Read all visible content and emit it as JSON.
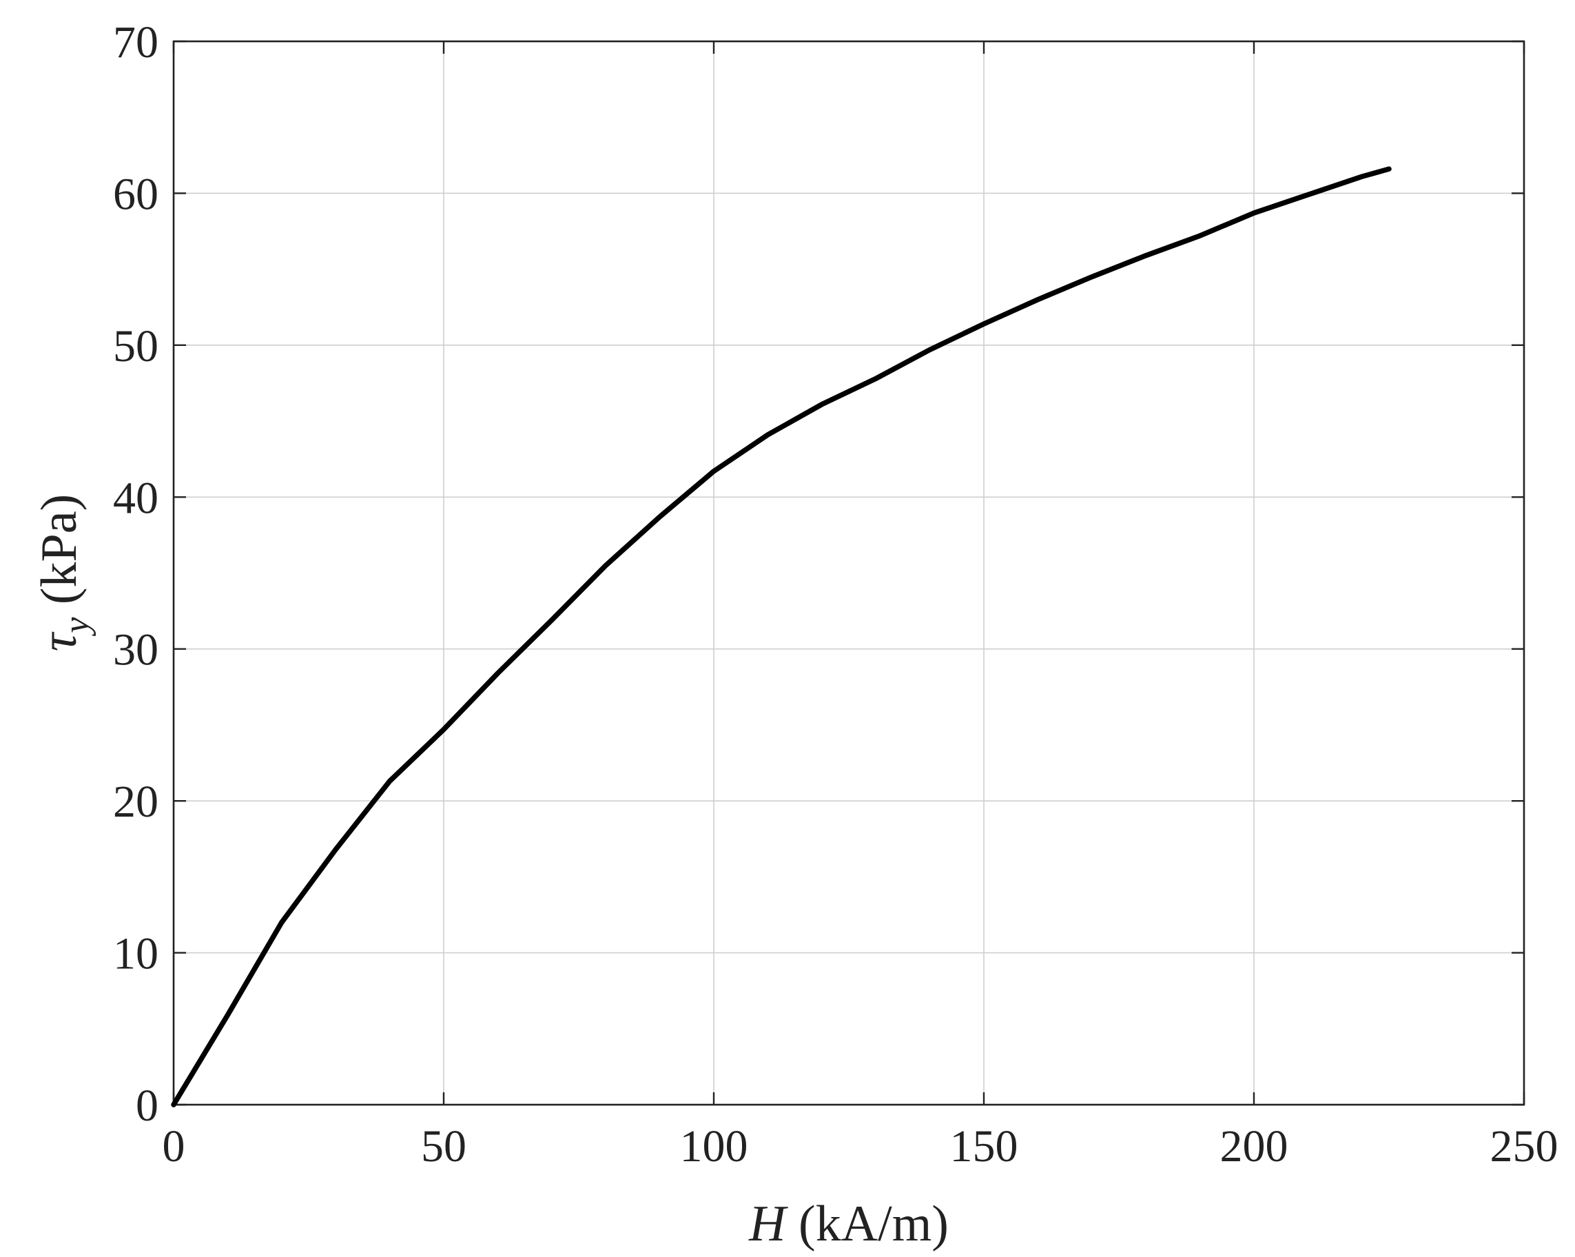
{
  "chart_data": {
    "type": "line",
    "title": "",
    "xlabel_italic": "H",
    "xlabel_rest": " (kA/m)",
    "ylabel_symbol": "τ",
    "ylabel_subscript": "y",
    "ylabel_rest": " (kPa)",
    "xlim": [
      0,
      250
    ],
    "ylim": [
      0,
      70
    ],
    "xticks": [
      0,
      50,
      100,
      150,
      200,
      250
    ],
    "yticks": [
      0,
      10,
      20,
      30,
      40,
      50,
      60,
      70
    ],
    "grid": true,
    "series": [
      {
        "color": "#000000",
        "x": [
          0,
          10,
          20,
          30,
          40,
          50,
          60,
          70,
          80,
          90,
          100,
          110,
          120,
          130,
          140,
          150,
          160,
          170,
          180,
          190,
          200,
          210,
          220,
          225
        ],
        "y": [
          0,
          5.9,
          12.0,
          16.8,
          21.3,
          24.7,
          28.4,
          31.9,
          35.5,
          38.7,
          41.7,
          44.1,
          46.1,
          47.8,
          49.7,
          51.4,
          53.0,
          54.5,
          55.9,
          57.2,
          58.7,
          59.9,
          61.1,
          61.6
        ]
      }
    ]
  }
}
